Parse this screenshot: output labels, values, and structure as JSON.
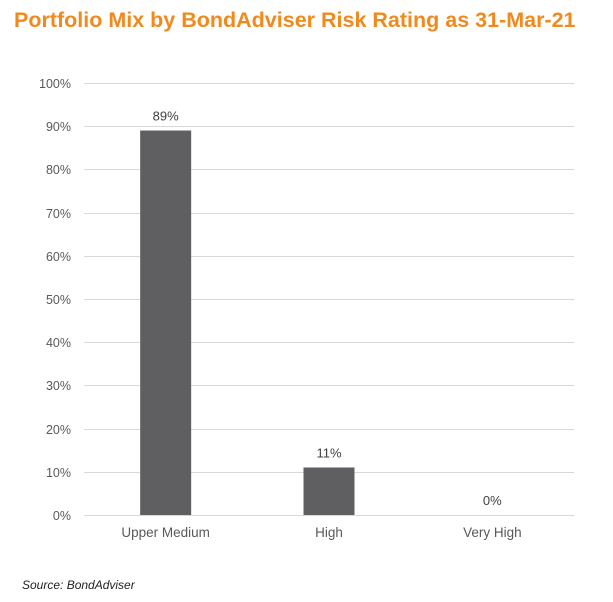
{
  "colors": {
    "title": "#f08a1c",
    "bar": "#5f5f61",
    "grid": "#d9d9d9"
  },
  "chart_data": {
    "type": "bar",
    "title": "Portfolio Mix by BondAdviser Risk Rating as 31-Mar-21",
    "categories": [
      "Upper Medium",
      "High",
      "Very High"
    ],
    "values": [
      89,
      11,
      0
    ],
    "data_labels": [
      "89%",
      "11%",
      "0%"
    ],
    "yticks": [
      "0%",
      "10%",
      "20%",
      "30%",
      "40%",
      "50%",
      "60%",
      "70%",
      "80%",
      "90%",
      "100%"
    ],
    "ylim": [
      0,
      100
    ],
    "grid": true,
    "legend": "none",
    "source": "Source: BondAdviser"
  }
}
